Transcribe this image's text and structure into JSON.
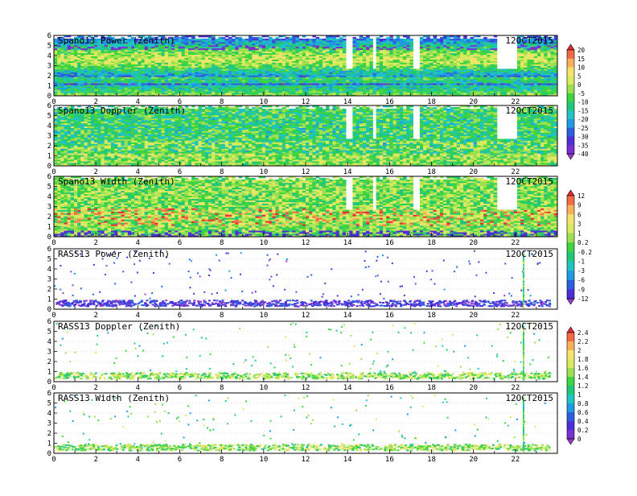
{
  "date_label": "12OCT2015",
  "chart_data": [
    {
      "type": "heatmap",
      "title": "Spano13 Power (Zenith)",
      "xlim": [
        0,
        24
      ],
      "ylim": [
        0,
        6
      ],
      "xticks": [
        "0",
        "2",
        "4",
        "6",
        "8",
        "10",
        "12",
        "14",
        "16",
        "18",
        "20",
        "22"
      ],
      "yticks": [
        "0",
        "1",
        "2",
        "3",
        "4",
        "5",
        "6"
      ],
      "field": "power",
      "coverage": "full",
      "colorbar": "A"
    },
    {
      "type": "heatmap",
      "title": "Spano13 Doppler (Zenith)",
      "xlim": [
        0,
        24
      ],
      "ylim": [
        0,
        6
      ],
      "xticks": [
        "0",
        "2",
        "4",
        "6",
        "8",
        "10",
        "12",
        "14",
        "16",
        "18",
        "20",
        "22"
      ],
      "yticks": [
        "0",
        "1",
        "2",
        "3",
        "4",
        "5",
        "6"
      ],
      "field": "doppler",
      "coverage": "full",
      "colorbar": "A"
    },
    {
      "type": "heatmap",
      "title": "Spano13 Width (Zenith)",
      "xlim": [
        0,
        24
      ],
      "ylim": [
        0,
        6
      ],
      "xticks": [
        "0",
        "2",
        "4",
        "6",
        "8",
        "10",
        "12",
        "14",
        "16",
        "18",
        "20",
        "22"
      ],
      "yticks": [
        "0",
        "1",
        "2",
        "3",
        "4",
        "5",
        "6"
      ],
      "field": "width",
      "coverage": "full",
      "colorbar": "B"
    },
    {
      "type": "heatmap",
      "title": "RASS13 Power (Zenith)",
      "xlim": [
        0,
        24
      ],
      "ylim": [
        0,
        6
      ],
      "xticks": [
        "0",
        "2",
        "4",
        "6",
        "8",
        "10",
        "12",
        "14",
        "16",
        "18",
        "20",
        "22"
      ],
      "yticks": [
        "0",
        "1",
        "2",
        "3",
        "4",
        "5",
        "6"
      ],
      "field": "rass_power",
      "coverage": "sparse",
      "colorbar": "B"
    },
    {
      "type": "heatmap",
      "title": "RASS13 Doppler (Zenith)",
      "xlim": [
        0,
        24
      ],
      "ylim": [
        0,
        6
      ],
      "xticks": [
        "0",
        "2",
        "4",
        "6",
        "8",
        "10",
        "12",
        "14",
        "16",
        "18",
        "20",
        "22"
      ],
      "yticks": [
        "0",
        "1",
        "2",
        "3",
        "4",
        "5",
        "6"
      ],
      "field": "rass_doppler",
      "coverage": "sparse",
      "colorbar": "C"
    },
    {
      "type": "heatmap",
      "title": "RASS13 Width (Zenith)",
      "xlim": [
        0,
        24
      ],
      "ylim": [
        0,
        6
      ],
      "xticks": [
        "0",
        "2",
        "4",
        "6",
        "8",
        "10",
        "12",
        "14",
        "16",
        "18",
        "20",
        "22"
      ],
      "yticks": [
        "0",
        "1",
        "2",
        "3",
        "4",
        "5",
        "6"
      ],
      "field": "rass_width",
      "coverage": "sparse",
      "colorbar": "C"
    }
  ],
  "colorbars": {
    "A": {
      "labels": [
        "20",
        "15",
        "10",
        "5",
        "0",
        "-5",
        "-10",
        "-15",
        "-20",
        "-25",
        "-30",
        "-35",
        "-40"
      ],
      "colors": [
        "#e8283a",
        "#f46a44",
        "#f8b15a",
        "#f5e36e",
        "#d9ea5e",
        "#9be04f",
        "#3fd441",
        "#22c77a",
        "#1fc4c3",
        "#209ae0",
        "#2c5fe0",
        "#4d2fd8",
        "#7a2fd0",
        "#9a3ad2"
      ]
    },
    "B": {
      "labels": [
        "12",
        "9",
        "6",
        "3",
        "1",
        "0.2",
        "-0.2",
        "-1",
        "-3",
        "-6",
        "-9",
        "-12"
      ],
      "colors": [
        "#e8283a",
        "#f46a44",
        "#f8b15a",
        "#f5e36e",
        "#d9ea5e",
        "#9be04f",
        "#3fd441",
        "#22c77a",
        "#1fc4c3",
        "#209ae0",
        "#2c5fe0",
        "#4d2fd8",
        "#9a3ad2"
      ]
    },
    "C": {
      "labels": [
        "2.4",
        "2.2",
        "2",
        "1.8",
        "1.6",
        "1.4",
        "1.2",
        "1",
        "0.8",
        "0.6",
        "0.4",
        "0.2",
        "0"
      ],
      "colors": [
        "#e8283a",
        "#f46a44",
        "#f8b15a",
        "#f5e36e",
        "#d9ea5e",
        "#9be04f",
        "#3fd441",
        "#22c77a",
        "#1fc4c3",
        "#209ae0",
        "#2c5fe0",
        "#4d2fd8",
        "#7a2fd0",
        "#9a3ad2"
      ]
    }
  }
}
